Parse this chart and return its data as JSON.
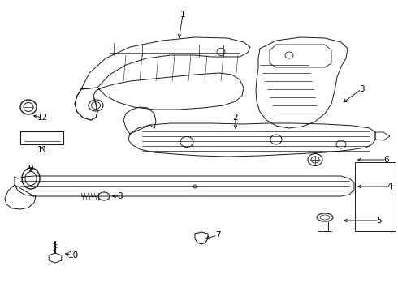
{
  "background_color": "#ffffff",
  "fig_width": 4.9,
  "fig_height": 3.6,
  "dpi": 100,
  "lc": "#1a1a1a",
  "lw": 0.7,
  "label_fontsize": 7.5
}
